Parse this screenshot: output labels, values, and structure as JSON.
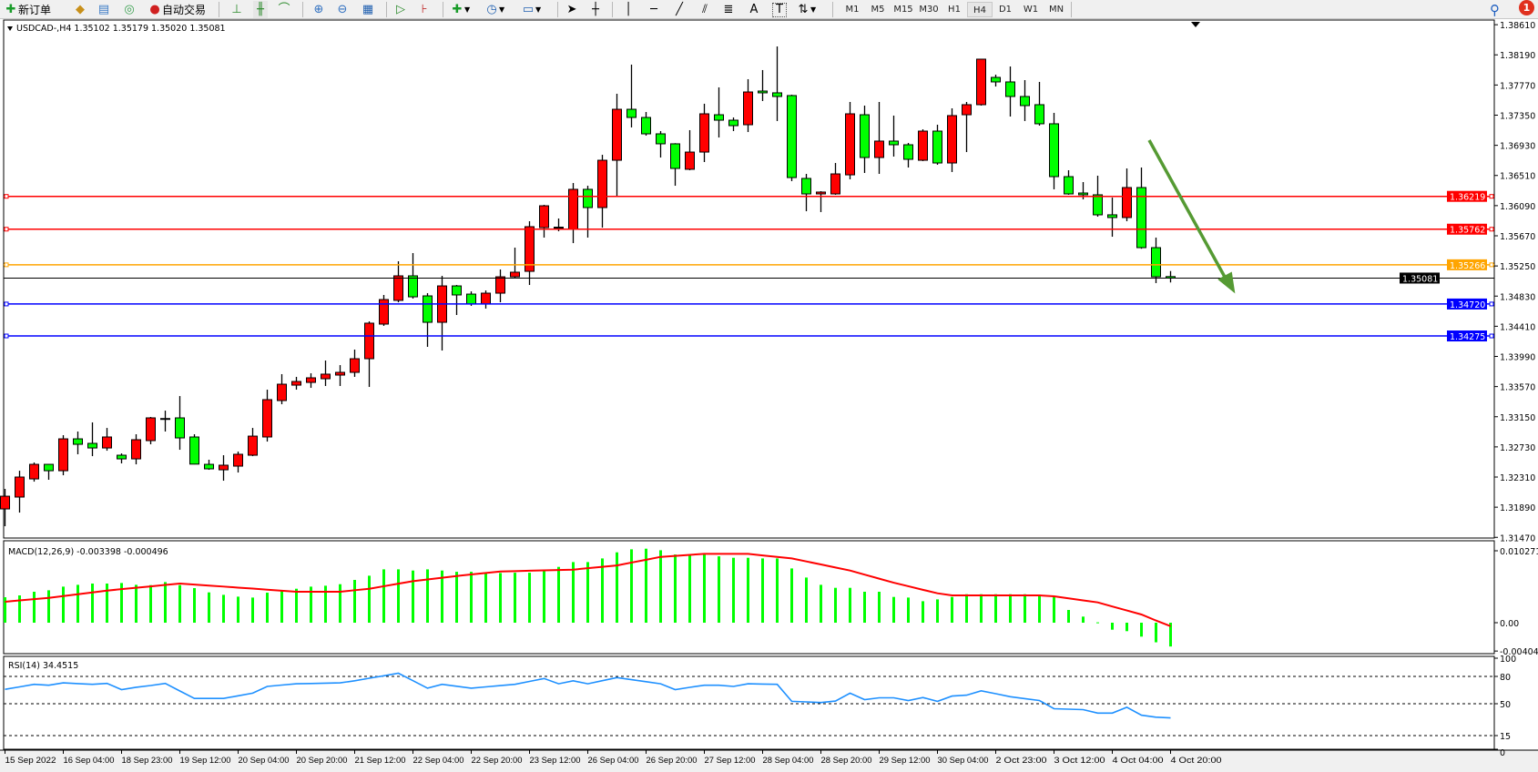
{
  "toolbar": {
    "new_order": "新订单",
    "auto_trade": "自动交易",
    "icons": [
      "new-order-icon",
      "market-watch-icon",
      "navigator-icon",
      "signals-icon",
      "auto-trade-icon",
      "bar-chart-icon",
      "candlestick-icon",
      "line-chart-icon",
      "zoom-in-icon",
      "zoom-out-icon",
      "tile-windows-icon",
      "autoscroll-icon",
      "chart-shift-icon",
      "indicators-icon",
      "periods-icon",
      "templates-icon",
      "cursor-icon",
      "crosshair-icon",
      "vertical-line-icon",
      "horizontal-line-icon",
      "trendline-icon",
      "equidistant-channel-icon",
      "fibonacci-icon",
      "text-icon",
      "text-label-icon",
      "arrows-icon",
      "search-icon",
      "notification-icon"
    ],
    "timeframes": [
      "M1",
      "M5",
      "M15",
      "M30",
      "H1",
      "H4",
      "D1",
      "W1",
      "MN"
    ],
    "active_timeframe": "H4",
    "text_tool": "A",
    "text_label_tool": "T",
    "notification_count": "1"
  },
  "chart": {
    "symbol_info": "USDCAD-,H4  1.35102 1.35179 1.35020 1.35081",
    "price_ticks": [
      "1.38610",
      "1.38190",
      "1.37770",
      "1.37350",
      "1.36930",
      "1.36510",
      "1.36090",
      "1.35670",
      "1.35250",
      "1.34830",
      "1.34410",
      "1.33990",
      "1.33570",
      "1.33150",
      "1.32730",
      "1.32310",
      "1.31890",
      "1.31470"
    ],
    "up_color": "#ff0000",
    "down_color": "#00ff00",
    "levels": [
      {
        "price": "1.36219",
        "color": "#ff0000"
      },
      {
        "price": "1.35762",
        "color": "#ff0000"
      },
      {
        "price": "1.35266",
        "color": "#ffa500"
      },
      {
        "price": "1.34720",
        "color": "#0000ff"
      },
      {
        "price": "1.34275",
        "color": "#0000ff"
      }
    ],
    "current_price": "1.35081",
    "arrow_color": "#559a33",
    "time_labels": [
      "15 Sep 2022",
      "16 Sep 04:00",
      "18 Sep 23:00",
      "19 Sep 12:00",
      "20 Sep 04:00",
      "20 Sep 20:00",
      "21 Sep 12:00",
      "22 Sep 04:00",
      "22 Sep 20:00",
      "23 Sep 12:00",
      "26 Sep 04:00",
      "26 Sep 20:00",
      "27 Sep 12:00",
      "28 Sep 04:00",
      "28 Sep 20:00",
      "29 Sep 12:00",
      "30 Sep 04:00",
      "2 Oct 23:00",
      "3 Oct 12:00",
      "4 Oct 04:00",
      "4 Oct 20:00"
    ],
    "candles_ohlc": [
      [
        1.31866,
        1.32145,
        1.31625,
        1.32043
      ],
      [
        1.32031,
        1.32398,
        1.31815,
        1.3231
      ],
      [
        1.32284,
        1.32513,
        1.32246,
        1.32487
      ],
      [
        1.32487,
        1.3249,
        1.32272,
        1.32398
      ],
      [
        1.32398,
        1.32893,
        1.32335,
        1.32842
      ],
      [
        1.32842,
        1.32944,
        1.32627,
        1.32766
      ],
      [
        1.32779,
        1.33071,
        1.32601,
        1.32715
      ],
      [
        1.32715,
        1.32994,
        1.32677,
        1.32868
      ],
      [
        1.32614,
        1.32639,
        1.325,
        1.32563
      ],
      [
        1.32563,
        1.32906,
        1.32487,
        1.3283
      ],
      [
        1.32817,
        1.33147,
        1.32766,
        1.33134
      ],
      [
        1.33121,
        1.33235,
        1.32944,
        1.33125
      ],
      [
        1.33134,
        1.33438,
        1.3269,
        1.32855
      ],
      [
        1.32868,
        1.32906,
        1.32487,
        1.3249
      ],
      [
        1.32487,
        1.32551,
        1.32411,
        1.32424
      ],
      [
        1.32411,
        1.32614,
        1.32259,
        1.32475
      ],
      [
        1.32462,
        1.32665,
        1.32373,
        1.32627
      ],
      [
        1.32614,
        1.32994,
        1.32601,
        1.3288
      ],
      [
        1.32868,
        1.33527,
        1.32804,
        1.33388
      ],
      [
        1.33375,
        1.33743,
        1.33324,
        1.33603
      ],
      [
        1.3359,
        1.33705,
        1.33527,
        1.33641
      ],
      [
        1.33628,
        1.33755,
        1.33552,
        1.33692
      ],
      [
        1.33679,
        1.33933,
        1.33578,
        1.33743
      ],
      [
        1.3373,
        1.33869,
        1.33578,
        1.33768
      ],
      [
        1.33768,
        1.34085,
        1.33705,
        1.33958
      ],
      [
        1.33958,
        1.34478,
        1.33565,
        1.34453
      ],
      [
        1.3444,
        1.34846,
        1.34415,
        1.34782
      ],
      [
        1.3477,
        1.35315,
        1.34744,
        1.35112
      ],
      [
        1.35112,
        1.35429,
        1.34795,
        1.3482
      ],
      [
        1.34833,
        1.34871,
        1.34123,
        1.34465
      ],
      [
        1.34465,
        1.35112,
        1.34072,
        1.34972
      ],
      [
        1.34972,
        1.34985,
        1.34567,
        1.34846
      ],
      [
        1.34858,
        1.34896,
        1.34694,
        1.34719
      ],
      [
        1.34719,
        1.34909,
        1.34656,
        1.34871
      ],
      [
        1.34871,
        1.35201,
        1.34744,
        1.35099
      ],
      [
        1.35099,
        1.35505,
        1.35074,
        1.35163
      ],
      [
        1.35175,
        1.35873,
        1.34985,
        1.35797
      ],
      [
        1.35784,
        1.36101,
        1.35645,
        1.36088
      ],
      [
        1.35784,
        1.35911,
        1.35733,
        1.3579
      ],
      [
        1.35759,
        1.36405,
        1.35568,
        1.36317
      ],
      [
        1.36317,
        1.36367,
        1.35645,
        1.36063
      ],
      [
        1.36063,
        1.36798,
        1.35784,
        1.36722
      ],
      [
        1.36722,
        1.37648,
        1.36228,
        1.37432
      ],
      [
        1.37432,
        1.38054,
        1.37179,
        1.37318
      ],
      [
        1.37318,
        1.37394,
        1.37065,
        1.3709
      ],
      [
        1.3709,
        1.37128,
        1.3676,
        1.36951
      ],
      [
        1.36951,
        1.3696,
        1.36367,
        1.36608
      ],
      [
        1.36596,
        1.37141,
        1.36583,
        1.36836
      ],
      [
        1.36836,
        1.37509,
        1.36697,
        1.37369
      ],
      [
        1.37356,
        1.37737,
        1.37039,
        1.3728
      ],
      [
        1.3728,
        1.37318,
        1.37128,
        1.37204
      ],
      [
        1.37217,
        1.37851,
        1.37115,
        1.37673
      ],
      [
        1.37686,
        1.37978,
        1.37547,
        1.37661
      ],
      [
        1.37661,
        1.38307,
        1.37268,
        1.3761
      ],
      [
        1.37623,
        1.37635,
        1.36431,
        1.36481
      ],
      [
        1.36469,
        1.36532,
        1.36012,
        1.36253
      ],
      [
        1.36253,
        1.36291,
        1.36,
        1.36279
      ],
      [
        1.36253,
        1.36684,
        1.36241,
        1.36532
      ],
      [
        1.36519,
        1.37534,
        1.36456,
        1.37369
      ],
      [
        1.37356,
        1.37483,
        1.36545,
        1.3676
      ],
      [
        1.3676,
        1.37534,
        1.36532,
        1.36989
      ],
      [
        1.36989,
        1.37344,
        1.36773,
        1.36938
      ],
      [
        1.36938,
        1.36963,
        1.36621,
        1.36735
      ],
      [
        1.36722,
        1.37153,
        1.3671,
        1.37128
      ],
      [
        1.37128,
        1.37217,
        1.36659,
        1.36684
      ],
      [
        1.36684,
        1.37445,
        1.36558,
        1.37344
      ],
      [
        1.37356,
        1.37534,
        1.36836,
        1.37496
      ],
      [
        1.37496,
        1.3813,
        1.37483,
        1.3813
      ],
      [
        1.37876,
        1.37914,
        1.37749,
        1.37813
      ],
      [
        1.37813,
        1.38028,
        1.37331,
        1.3761
      ],
      [
        1.3761,
        1.37838,
        1.37268,
        1.37483
      ],
      [
        1.37496,
        1.37813,
        1.37204,
        1.3723
      ],
      [
        1.3723,
        1.37382,
        1.36317,
        1.36494
      ],
      [
        1.36494,
        1.36583,
        1.36241,
        1.36253
      ],
      [
        1.36266,
        1.36418,
        1.36177,
        1.36241
      ],
      [
        1.36241,
        1.36507,
        1.35936,
        1.35962
      ],
      [
        1.35962,
        1.36202,
        1.35657,
        1.35924
      ],
      [
        1.35924,
        1.36608,
        1.35873,
        1.36342
      ],
      [
        1.36342,
        1.36621,
        1.3549,
        1.35505
      ],
      [
        1.35505,
        1.35645,
        1.35011,
        1.35099
      ],
      [
        1.35102,
        1.35179,
        1.3502,
        1.35081
      ]
    ]
  },
  "macd": {
    "label": "MACD(12,26,9) -0.003398 -0.000496",
    "axis_labels": [
      "0.010271",
      "0.00",
      "-0.004049"
    ],
    "histogram_color": "#00ff00",
    "signal_color": "#ff0000",
    "histogram": [
      0.00364,
      0.0039,
      0.00442,
      0.00463,
      0.00515,
      0.00541,
      0.00559,
      0.00559,
      0.00567,
      0.00541,
      0.00537,
      0.0058,
      0.00537,
      0.00494,
      0.00433,
      0.00398,
      0.00372,
      0.00359,
      0.00429,
      0.00459,
      0.00485,
      0.00515,
      0.00528,
      0.0055,
      0.00611,
      0.00671,
      0.00762,
      0.00762,
      0.00745,
      0.00762,
      0.00745,
      0.00727,
      0.00727,
      0.00714,
      0.0071,
      0.00714,
      0.00714,
      0.00753,
      0.00797,
      0.00866,
      0.00866,
      0.00918,
      0.01005,
      0.01048,
      0.01057,
      0.01035,
      0.00974,
      0.00961,
      0.00974,
      0.00948,
      0.00927,
      0.00927,
      0.00918,
      0.00918,
      0.00775,
      0.00645,
      0.00541,
      0.00498,
      0.00498,
      0.00442,
      0.00442,
      0.00368,
      0.00359,
      0.00307,
      0.00333,
      0.00368,
      0.00407,
      0.00407,
      0.00407,
      0.00407,
      0.00407,
      0.00385,
      0.00372,
      0.00182,
      0.00087,
      5e-05,
      -0.001,
      -0.00121,
      -0.00199,
      -0.0028,
      -0.003398
    ],
    "signal": [
      0.00299,
      0.00318,
      0.00336,
      0.00355,
      0.00381,
      0.00407,
      0.00433,
      0.00459,
      0.00479,
      0.00499,
      0.00519,
      0.00539,
      0.00559,
      0.00545,
      0.0053,
      0.00516,
      0.00501,
      0.00487,
      0.00472,
      0.00457,
      0.00442,
      0.00442,
      0.00442,
      0.00442,
      0.00464,
      0.00485,
      0.00521,
      0.00557,
      0.00593,
      0.00618,
      0.00642,
      0.00667,
      0.00689,
      0.0071,
      0.00732,
      0.00737,
      0.00742,
      0.00747,
      0.00753,
      0.00758,
      0.00778,
      0.00798,
      0.00818,
      0.00859,
      0.00899,
      0.0094,
      0.00954,
      0.00969,
      0.00983,
      0.00983,
      0.00983,
      0.00983,
      0.00961,
      0.0094,
      0.00918,
      0.00875,
      0.00832,
      0.00788,
      0.00745,
      0.00687,
      0.00629,
      0.00571,
      0.00521,
      0.0047,
      0.0042,
      0.0039,
      0.0039,
      0.0039,
      0.0039,
      0.0039,
      0.0039,
      0.0039,
      0.00377,
      0.00348,
      0.00319,
      0.0029,
      0.00232,
      0.00175,
      0.00117,
      0.00031,
      -0.000496
    ]
  },
  "rsi": {
    "label": "RSI(14) 34.4515",
    "axis_labels": [
      "100",
      "80",
      "50",
      "15",
      "0"
    ],
    "line_color": "#1e90ff",
    "values": [
      65.8,
      68.5,
      71.3,
      70.3,
      72.9,
      72.1,
      71.3,
      72.3,
      65.5,
      68.1,
      70.0,
      72.3,
      64.0,
      55.8,
      55.8,
      55.8,
      58.7,
      61.6,
      69.0,
      70.5,
      71.9,
      72.2,
      72.6,
      72.9,
      75.2,
      78.0,
      80.7,
      83.5,
      75.3,
      67.1,
      71.3,
      69.2,
      67.1,
      68.5,
      69.9,
      71.3,
      74.5,
      77.7,
      71.9,
      75.2,
      71.9,
      75.3,
      78.7,
      76.4,
      74.2,
      71.9,
      65.5,
      68.0,
      70.3,
      70.3,
      69.0,
      71.9,
      71.6,
      71.3,
      52.6,
      52.0,
      51.3,
      52.9,
      61.6,
      54.5,
      56.5,
      56.5,
      53.5,
      56.8,
      52.6,
      58.4,
      59.4,
      64.2,
      61.0,
      57.7,
      55.6,
      53.5,
      44.5,
      44.0,
      43.5,
      39.7,
      39.7,
      46.1,
      37.4,
      35.2,
      34.45
    ]
  }
}
